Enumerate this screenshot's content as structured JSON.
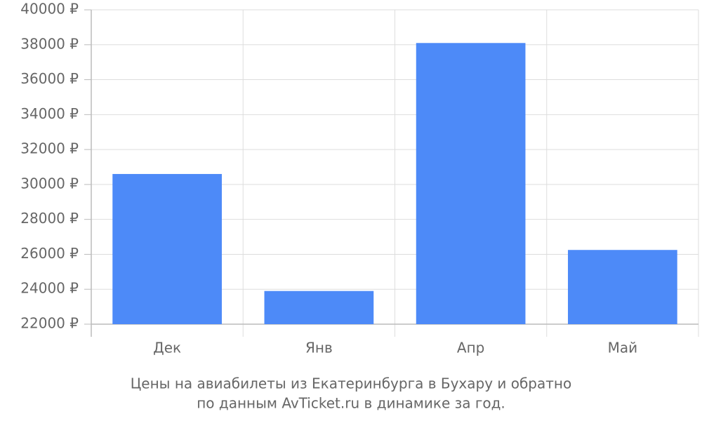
{
  "chart_data": {
    "type": "bar",
    "title": [
      "Цены на авиабилеты из Екатеринбурга в Бухару и обратно",
      "по данным AvTicket.ru в динамике за год."
    ],
    "categories": [
      "Дек",
      "Янв",
      "Апр",
      "Май"
    ],
    "values": [
      30600,
      23900,
      38100,
      26250
    ],
    "color": "#4d8af8",
    "ylim": [
      22000,
      40000
    ],
    "yticks": [
      {
        "value": 22000,
        "label": "22000 ₽"
      },
      {
        "value": 24000,
        "label": "24000 ₽"
      },
      {
        "value": 26000,
        "label": "26000 ₽"
      },
      {
        "value": 28000,
        "label": "28000 ₽"
      },
      {
        "value": 30000,
        "label": "30000 ₽"
      },
      {
        "value": 32000,
        "label": "32000 ₽"
      },
      {
        "value": 34000,
        "label": "34000 ₽"
      },
      {
        "value": 36000,
        "label": "36000 ₽"
      },
      {
        "value": 38000,
        "label": "38000 ₽"
      },
      {
        "value": 40000,
        "label": "40000 ₽"
      }
    ],
    "grid": true
  }
}
